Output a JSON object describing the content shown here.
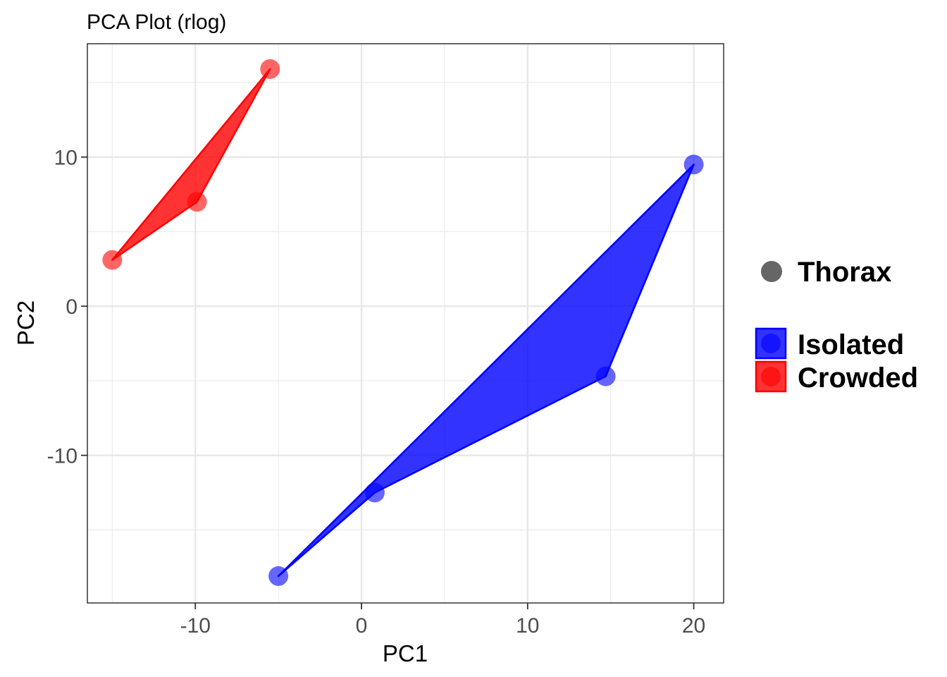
{
  "chart_data": {
    "type": "scatter",
    "title": "PCA Plot (rlog)",
    "xlabel": "PC1",
    "ylabel": "PC2",
    "xlim": [
      -16.5,
      21.8
    ],
    "ylim": [
      -19.9,
      17.6
    ],
    "x_ticks": [
      -10,
      0,
      10,
      20
    ],
    "y_ticks": [
      -10,
      0,
      10
    ],
    "x_tick_labels": [
      "-10",
      "0",
      "10",
      "20"
    ],
    "y_tick_labels": [
      "-10",
      "0",
      "10"
    ],
    "grid": true,
    "legend_position": "right",
    "shape_legend": [
      {
        "label": "Thorax",
        "color": "#666666"
      }
    ],
    "series": [
      {
        "name": "Isolated",
        "color": "#0000ff",
        "points": [
          {
            "x": 20.0,
            "y": 9.5
          },
          {
            "x": 14.7,
            "y": -4.7
          },
          {
            "x": 0.8,
            "y": -12.5
          },
          {
            "x": -5.0,
            "y": -18.1
          }
        ]
      },
      {
        "name": "Crowded",
        "color": "#ff0000",
        "points": [
          {
            "x": -5.5,
            "y": 15.9
          },
          {
            "x": -9.9,
            "y": 7.0
          },
          {
            "x": -15.0,
            "y": 3.1
          }
        ]
      }
    ]
  }
}
